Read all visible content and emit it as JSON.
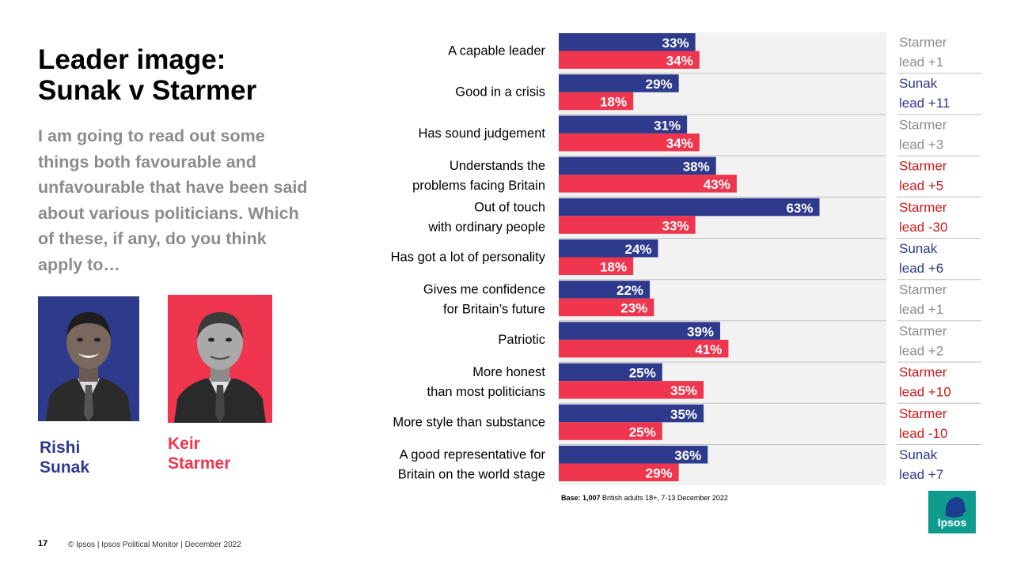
{
  "page": {
    "title_line1": "Leader image:",
    "title_line2": "Sunak v Starmer",
    "question": "I am going to read out some things both favourable and unfavourable that have been said about various politicians. Which of these, if any, do you think apply to…",
    "sunak_first": "Rishi",
    "sunak_last": "Sunak",
    "starmer_first": "Keir",
    "starmer_last": "Starmer",
    "page_number": "17",
    "footer": "© Ipsos | Ipsos Political Monitor | December 2022",
    "base_bold": "Base: 1,007",
    "base_rest": " British adults 18+, 7-13 December 2022",
    "logo": "Ipsos"
  },
  "colors": {
    "sunak": "#2e3a8c",
    "starmer": "#f0364e",
    "grey_text": "#8c8c8c",
    "plot_bg": "#f2f2f2",
    "logo": "#0f9c8f"
  },
  "chart_data": {
    "type": "bar",
    "orientation": "horizontal",
    "title": "Leader image: Sunak v Starmer",
    "xlim": [
      0,
      100
    ],
    "categories": [
      [
        "A capable leader"
      ],
      [
        "Good in a crisis"
      ],
      [
        "Has sound judgement"
      ],
      [
        "Understands the",
        "problems facing Britain"
      ],
      [
        "Out of touch",
        "with ordinary people"
      ],
      [
        "Has got a lot of personality"
      ],
      [
        "Gives me confidence",
        "for Britain’s future"
      ],
      [
        "Patriotic"
      ],
      [
        "More honest",
        "than most politicians"
      ],
      [
        "More style than substance"
      ],
      [
        "A good representative for",
        "Britain on the world stage"
      ]
    ],
    "series": [
      {
        "name": "Rishi Sunak",
        "values": [
          33,
          29,
          31,
          38,
          63,
          24,
          22,
          39,
          25,
          35,
          36
        ],
        "labels": [
          "33%",
          "29%",
          "31%",
          "38%",
          "63%",
          "24%",
          "22%",
          "39%",
          "25%",
          "35%",
          "36%"
        ]
      },
      {
        "name": "Keir Starmer",
        "values": [
          34,
          18,
          34,
          43,
          33,
          18,
          23,
          41,
          35,
          25,
          29
        ],
        "labels": [
          "34%",
          "18%",
          "34%",
          "43%",
          "33%",
          "18%",
          "23%",
          "41%",
          "35%",
          "25%",
          "29%"
        ]
      }
    ],
    "leads": [
      {
        "line1": "Starmer",
        "line2": "lead +1",
        "tone": "grey"
      },
      {
        "line1": "Sunak",
        "line2": "lead +11",
        "tone": "sunak"
      },
      {
        "line1": "Starmer",
        "line2": "lead +3",
        "tone": "grey"
      },
      {
        "line1": "Starmer",
        "line2": "lead +5",
        "tone": "starmer"
      },
      {
        "line1": "Starmer",
        "line2": "lead -30",
        "tone": "starmer"
      },
      {
        "line1": "Sunak",
        "line2": "lead +6",
        "tone": "sunak"
      },
      {
        "line1": "Starmer",
        "line2": "lead +1",
        "tone": "grey"
      },
      {
        "line1": "Starmer",
        "line2": "lead +2",
        "tone": "grey"
      },
      {
        "line1": "Starmer",
        "line2": "lead +10",
        "tone": "starmer"
      },
      {
        "line1": "Starmer",
        "line2": "lead -10",
        "tone": "starmer"
      },
      {
        "line1": "Sunak",
        "line2": "lead +7",
        "tone": "sunak"
      }
    ]
  }
}
